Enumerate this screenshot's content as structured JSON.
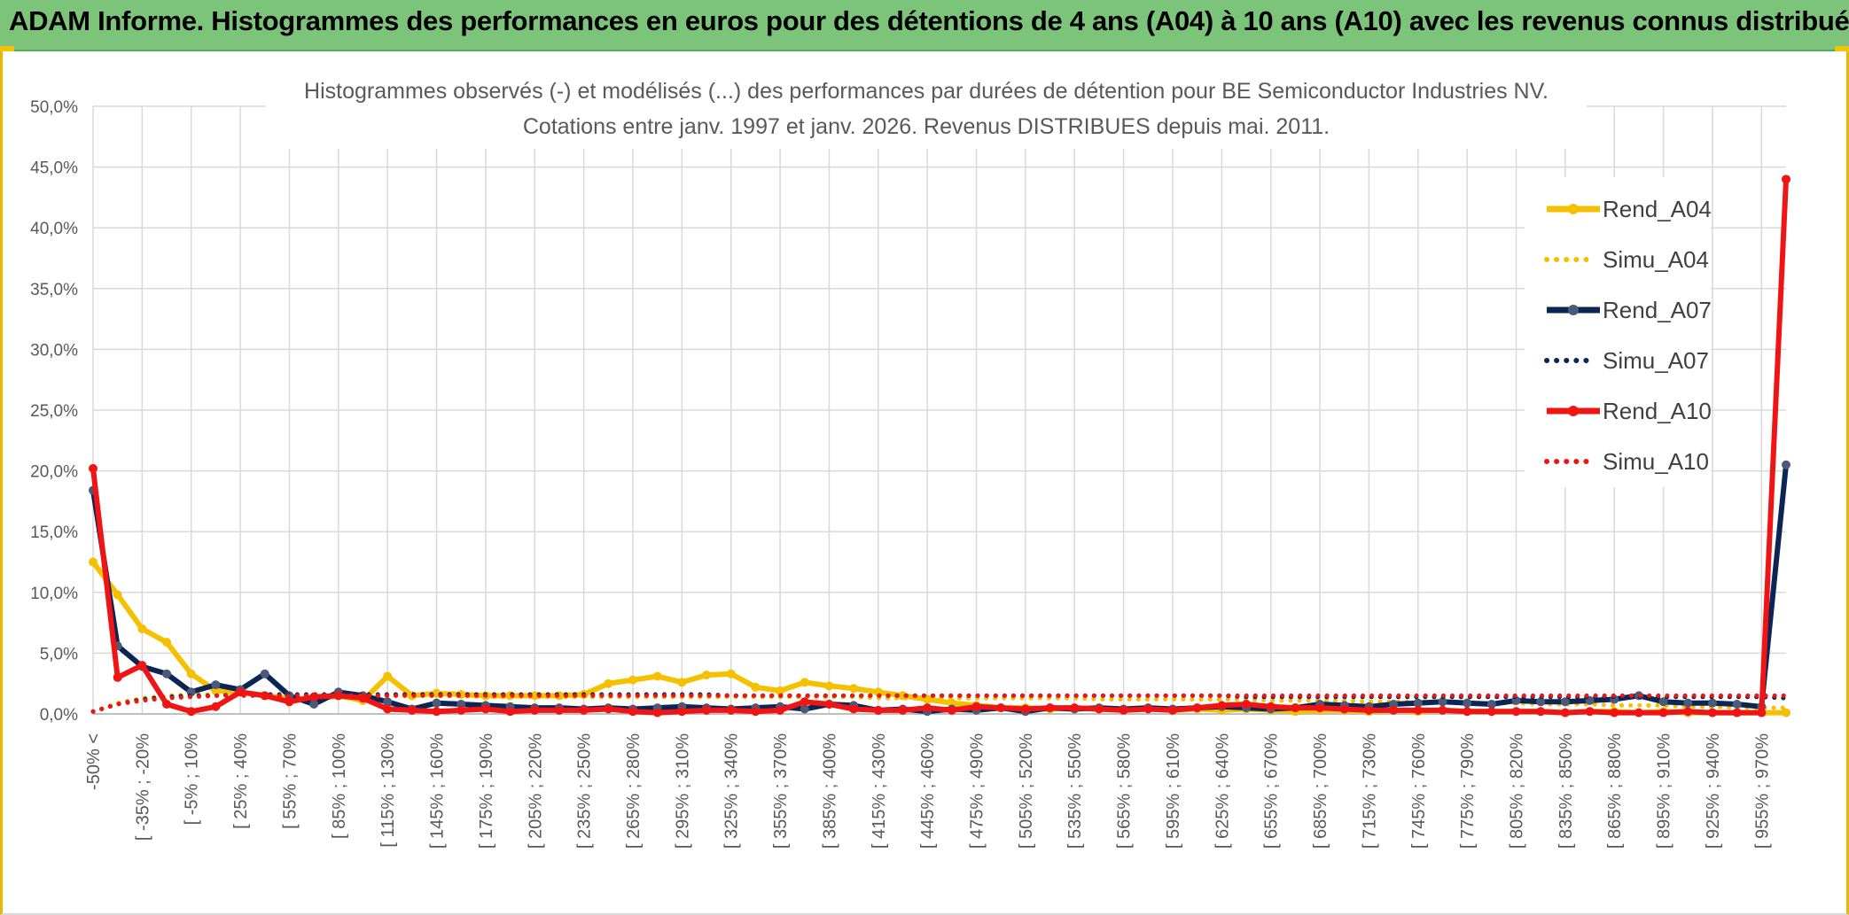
{
  "header": {
    "title": "ADAM Informe. Histogrammes des performances en euros pour des détentions de 4 ans (A04) à 10 ans (A10) avec les revenus connus distribués"
  },
  "colors": {
    "banner": "#7dc47b",
    "accent": "#e8b800",
    "A04": "#f5c000",
    "A07": "#0d2554",
    "A10": "#f01515"
  },
  "chart_data": {
    "type": "line",
    "title": "Histogrammes observés (-) et modélisés (...) des performances par durées de détention pour BE Semiconductor Industries NV.",
    "subtitle": "Cotations entre janv. 1997 et janv. 2026. Revenus DISTRIBUES depuis mai. 2011.",
    "ylim": [
      0,
      50
    ],
    "y_ticks": [
      "0,0%",
      "5,0%",
      "10,0%",
      "15,0%",
      "20,0%",
      "25,0%",
      "30,0%",
      "35,0%",
      "40,0%",
      "45,0%",
      "50,0%"
    ],
    "x_labels": [
      "-50% <",
      "[ -35% ; -20%",
      "[ -5% ; 10%",
      "[ 25% ; 40%",
      "[ 55% ; 70%",
      "[ 85% ; 100%",
      "[ 115% ; 130%",
      "[ 145% ; 160%",
      "[ 175% ; 190%",
      "[ 205% ; 220%",
      "[ 235% ; 250%",
      "[ 265% ; 280%",
      "[ 295% ; 310%",
      "[ 325% ; 340%",
      "[ 355% ; 370%",
      "[ 385% ; 400%",
      "[ 415% ; 430%",
      "[ 445% ; 460%",
      "[ 475% ; 490%",
      "[ 505% ; 520%",
      "[ 535% ; 550%",
      "[ 565% ; 580%",
      "[ 595% ; 610%",
      "[ 625% ; 640%",
      "[ 655% ; 670%",
      "[ 685% ; 700%",
      "[ 715% ; 730%",
      "[ 745% ; 760%",
      "[ 775% ; 790%",
      "[ 805% ; 820%",
      "[ 835% ; 850%",
      "[ 865% ; 880%",
      "[ 895% ; 910%",
      "[ 925% ; 940%",
      "[ 955% ; 970%"
    ],
    "n_points": 70,
    "series": [
      {
        "name": "Rend_A04",
        "style": "solid",
        "color": "#f5c000",
        "values": [
          12.5,
          9.8,
          7.0,
          5.9,
          3.3,
          1.9,
          1.8,
          1.5,
          1.3,
          1.2,
          1.5,
          1.1,
          3.1,
          1.5,
          1.7,
          1.6,
          1.5,
          1.5,
          1.5,
          1.5,
          1.6,
          2.5,
          2.8,
          3.1,
          2.6,
          3.2,
          3.3,
          2.2,
          1.9,
          2.6,
          2.3,
          2.1,
          1.8,
          1.5,
          1.2,
          0.9,
          0.7,
          0.5,
          0.5,
          0.4,
          0.5,
          0.4,
          0.3,
          0.5,
          0.3,
          0.4,
          0.3,
          0.4,
          0.3,
          0.2,
          0.3,
          0.3,
          0.2,
          0.3,
          0.2,
          0.3,
          0.2,
          0.2,
          0.2,
          0.2,
          0.1,
          0.2,
          0.2,
          0.1,
          0.2,
          0.1,
          0.1,
          0.1,
          0.1,
          0.1
        ]
      },
      {
        "name": "Simu_A04",
        "style": "dotted",
        "color": "#f5c000",
        "values": [
          0.2,
          0.9,
          1.3,
          1.5,
          1.6,
          1.6,
          1.6,
          1.6,
          1.5,
          1.5,
          1.5,
          1.5,
          1.5,
          1.5,
          1.5,
          1.5,
          1.4,
          1.4,
          1.4,
          1.4,
          1.4,
          1.4,
          1.4,
          1.4,
          1.4,
          1.4,
          1.4,
          1.4,
          1.4,
          1.4,
          1.4,
          1.4,
          1.3,
          1.3,
          1.3,
          1.3,
          1.3,
          1.3,
          1.3,
          1.3,
          1.3,
          1.2,
          1.2,
          1.2,
          1.2,
          1.2,
          1.2,
          1.2,
          1.1,
          1.1,
          1.1,
          1.1,
          1.0,
          1.0,
          1.0,
          1.0,
          0.9,
          0.9,
          0.9,
          0.8,
          0.8,
          0.8,
          0.7,
          0.7,
          0.7,
          0.6,
          0.6,
          0.5,
          0.5,
          0.5
        ]
      },
      {
        "name": "Rend_A07",
        "style": "solid",
        "color": "#0d2554",
        "values": [
          18.4,
          5.6,
          3.9,
          3.3,
          1.8,
          2.4,
          2.0,
          3.3,
          1.5,
          0.8,
          1.8,
          1.5,
          1.0,
          0.4,
          0.9,
          0.8,
          0.7,
          0.6,
          0.5,
          0.5,
          0.4,
          0.5,
          0.4,
          0.5,
          0.6,
          0.5,
          0.4,
          0.5,
          0.6,
          0.4,
          0.8,
          0.7,
          0.3,
          0.4,
          0.2,
          0.4,
          0.3,
          0.5,
          0.2,
          0.5,
          0.4,
          0.5,
          0.4,
          0.5,
          0.4,
          0.5,
          0.6,
          0.5,
          0.4,
          0.5,
          0.8,
          0.7,
          0.6,
          0.8,
          0.9,
          1.0,
          0.9,
          0.8,
          1.1,
          1.0,
          1.0,
          1.1,
          1.2,
          1.5,
          1.0,
          0.9,
          0.9,
          0.8,
          0.6,
          20.5
        ]
      },
      {
        "name": "Simu_A07",
        "style": "dotted",
        "color": "#0d2554",
        "values": [
          0.2,
          0.8,
          1.2,
          1.4,
          1.5,
          1.5,
          1.6,
          1.6,
          1.6,
          1.6,
          1.6,
          1.6,
          1.6,
          1.6,
          1.6,
          1.6,
          1.6,
          1.6,
          1.6,
          1.6,
          1.6,
          1.6,
          1.6,
          1.6,
          1.6,
          1.6,
          1.5,
          1.5,
          1.5,
          1.5,
          1.5,
          1.5,
          1.5,
          1.5,
          1.5,
          1.5,
          1.5,
          1.5,
          1.5,
          1.5,
          1.5,
          1.5,
          1.5,
          1.5,
          1.5,
          1.5,
          1.5,
          1.4,
          1.4,
          1.4,
          1.4,
          1.4,
          1.4,
          1.4,
          1.4,
          1.4,
          1.4,
          1.4,
          1.4,
          1.4,
          1.4,
          1.4,
          1.4,
          1.4,
          1.4,
          1.4,
          1.4,
          1.4,
          1.4,
          1.3
        ]
      },
      {
        "name": "Rend_A10",
        "style": "solid",
        "color": "#f01515",
        "values": [
          20.2,
          3.0,
          4.0,
          0.8,
          0.2,
          0.6,
          1.8,
          1.5,
          1.0,
          1.4,
          1.5,
          1.3,
          0.4,
          0.3,
          0.2,
          0.3,
          0.4,
          0.2,
          0.3,
          0.3,
          0.3,
          0.4,
          0.2,
          0.1,
          0.2,
          0.3,
          0.3,
          0.2,
          0.3,
          1.0,
          0.8,
          0.4,
          0.3,
          0.3,
          0.5,
          0.3,
          0.6,
          0.5,
          0.4,
          0.5,
          0.5,
          0.4,
          0.3,
          0.4,
          0.3,
          0.5,
          0.7,
          0.8,
          0.6,
          0.5,
          0.5,
          0.4,
          0.3,
          0.3,
          0.3,
          0.3,
          0.2,
          0.2,
          0.2,
          0.2,
          0.1,
          0.2,
          0.1,
          0.1,
          0.1,
          0.2,
          0.1,
          0.1,
          0.1,
          44.0
        ]
      },
      {
        "name": "Simu_A10",
        "style": "dotted",
        "color": "#f01515",
        "values": [
          0.2,
          0.8,
          1.1,
          1.3,
          1.4,
          1.5,
          1.5,
          1.5,
          1.5,
          1.5,
          1.5,
          1.5,
          1.5,
          1.5,
          1.5,
          1.5,
          1.5,
          1.5,
          1.5,
          1.5,
          1.5,
          1.5,
          1.5,
          1.5,
          1.5,
          1.5,
          1.5,
          1.5,
          1.5,
          1.5,
          1.5,
          1.5,
          1.5,
          1.5,
          1.5,
          1.5,
          1.5,
          1.5,
          1.5,
          1.5,
          1.5,
          1.5,
          1.5,
          1.5,
          1.5,
          1.5,
          1.5,
          1.5,
          1.5,
          1.5,
          1.5,
          1.5,
          1.5,
          1.5,
          1.5,
          1.5,
          1.5,
          1.5,
          1.5,
          1.5,
          1.5,
          1.5,
          1.5,
          1.5,
          1.5,
          1.5,
          1.5,
          1.5,
          1.5,
          1.5
        ]
      }
    ],
    "legend": [
      "Rend_A04",
      "Simu_A04",
      "Rend_A07",
      "Simu_A07",
      "Rend_A10",
      "Simu_A10"
    ],
    "legend_position": "right",
    "grid": true
  }
}
